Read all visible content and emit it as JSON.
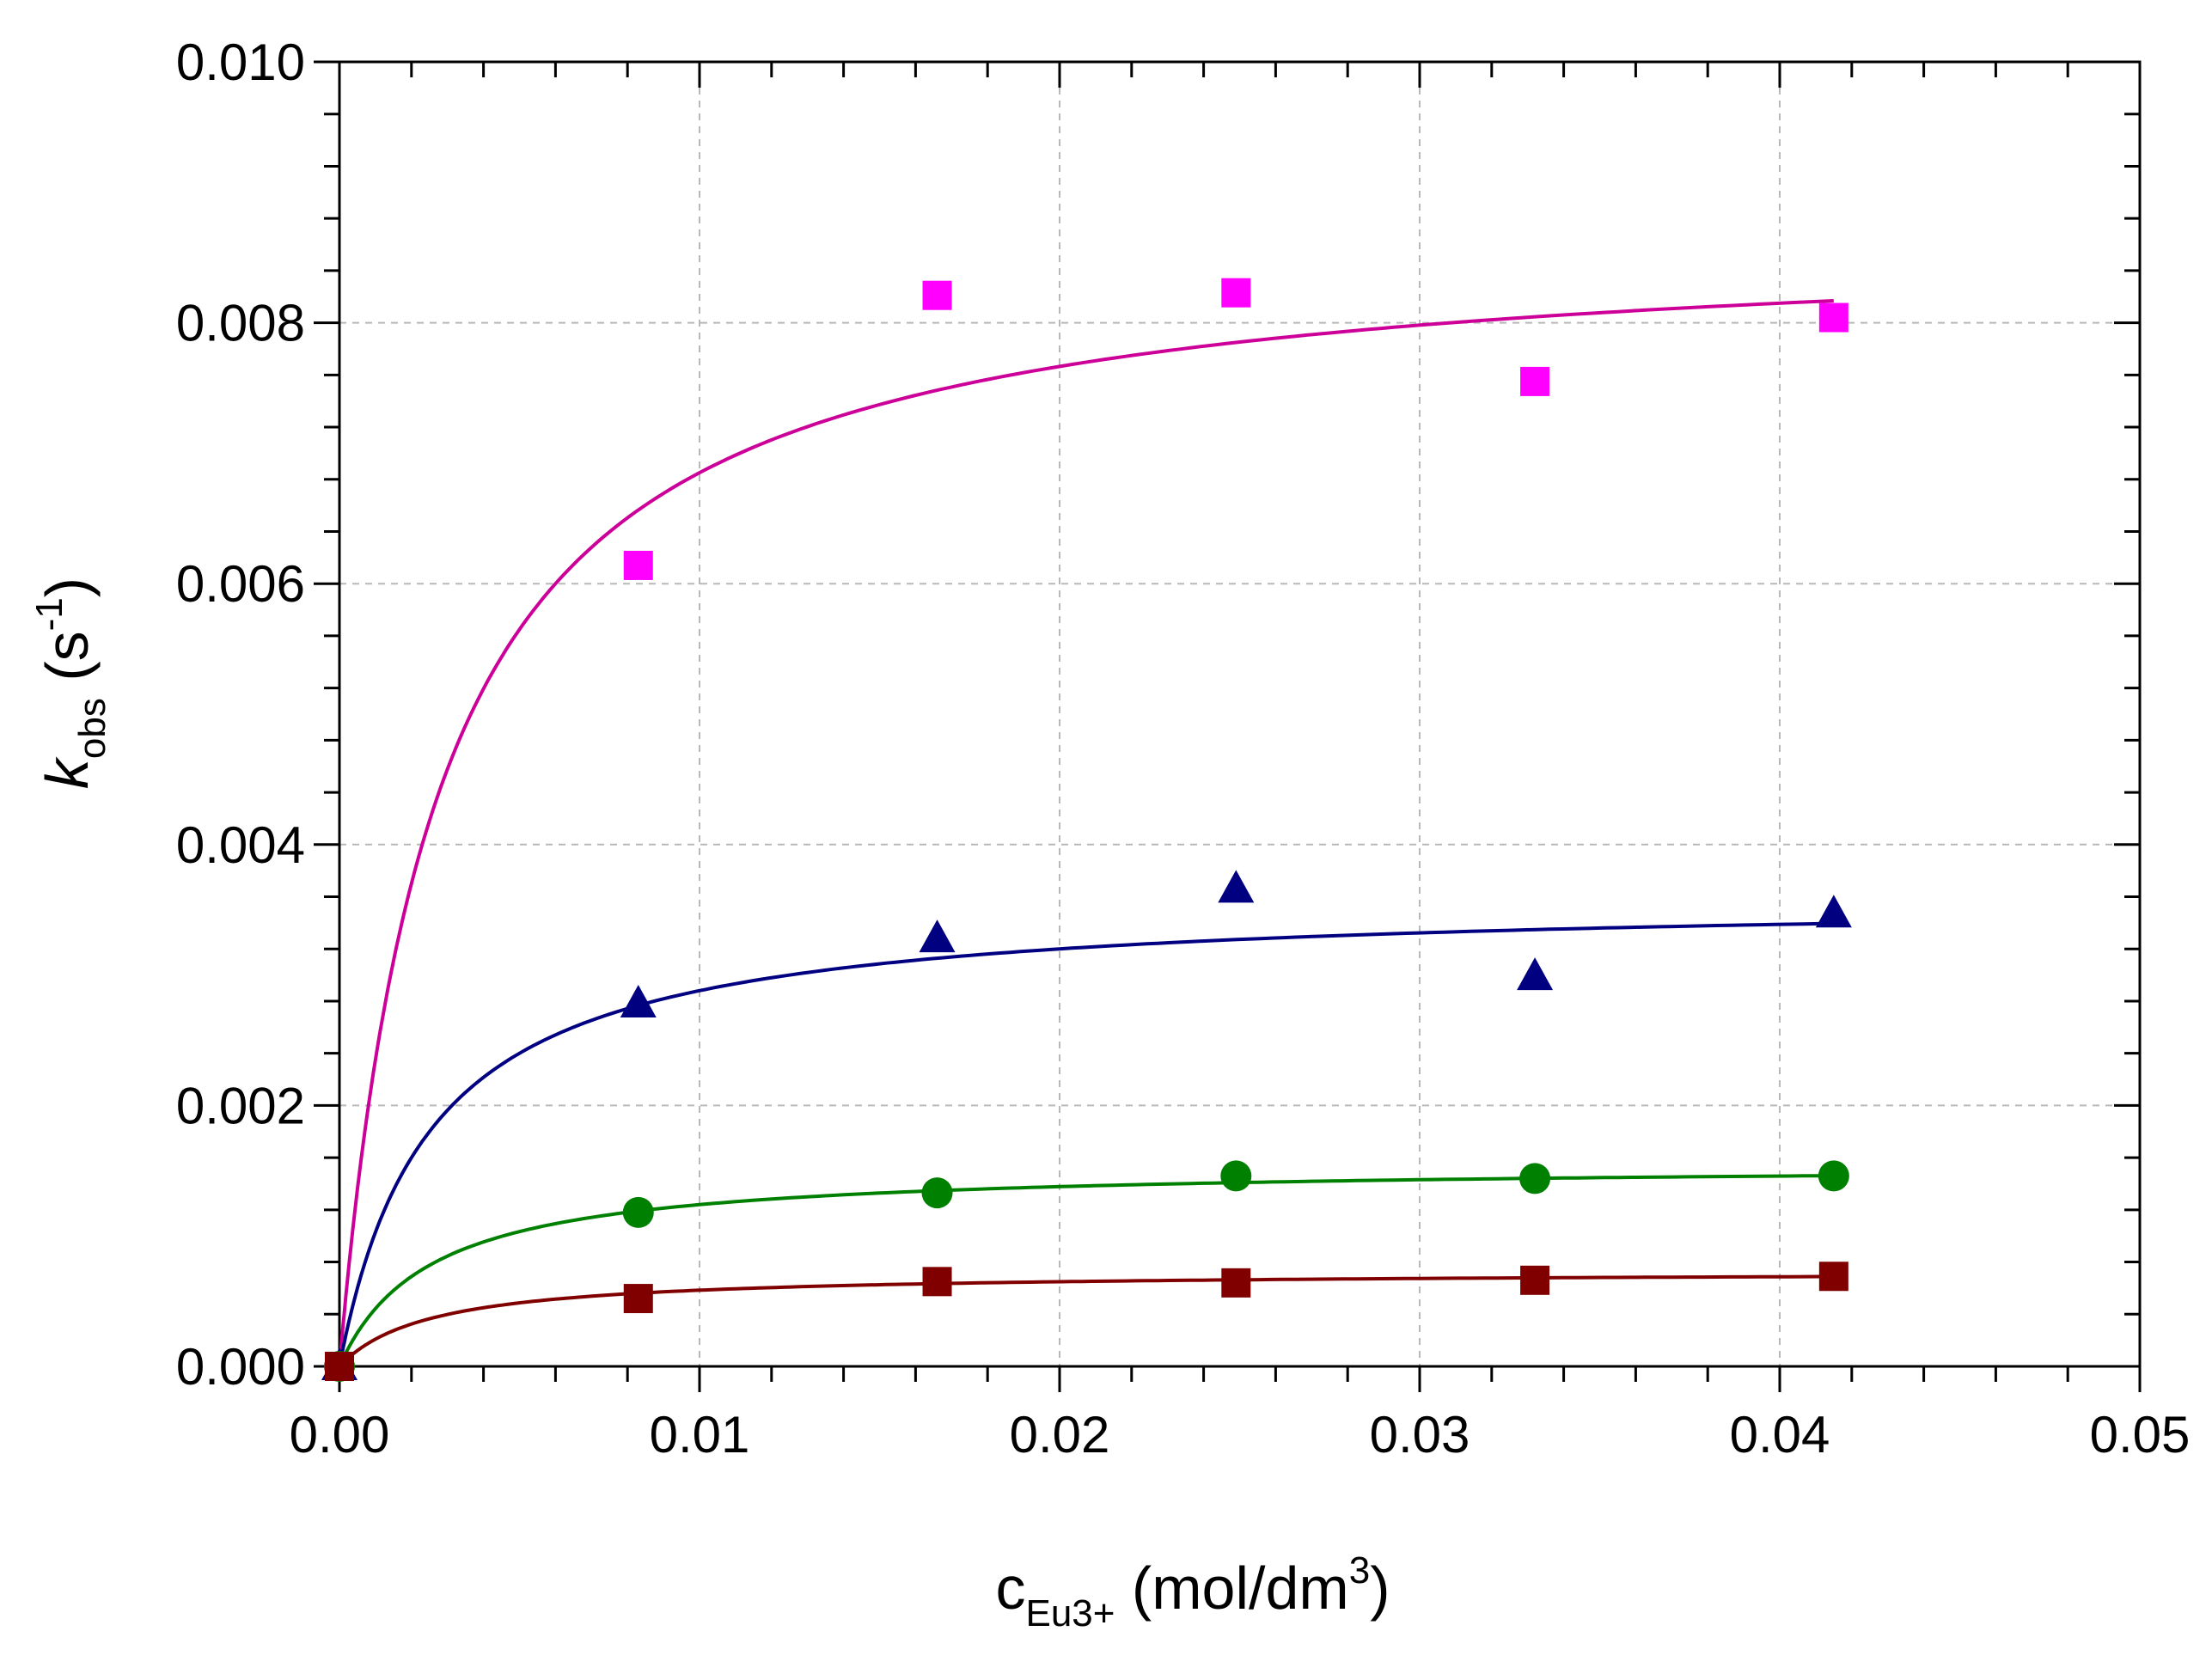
{
  "chart_data": {
    "type": "scatter",
    "title": "",
    "xlabel": {
      "main": "c",
      "sub": "Eu3+",
      "unit_pre": " (mol/dm",
      "sup": "3",
      "unit_post": ")"
    },
    "ylabel": {
      "main": "k",
      "sub": "obs",
      "unit_pre": " (s",
      "sup": "-1",
      "unit_post": ")"
    },
    "xlim": [
      0,
      0.05
    ],
    "ylim": [
      0,
      0.01
    ],
    "grid": true,
    "x_ticks": [
      {
        "value": 0.0,
        "label": "0.00"
      },
      {
        "value": 0.01,
        "label": "0.01"
      },
      {
        "value": 0.02,
        "label": "0.02"
      },
      {
        "value": 0.03,
        "label": "0.03"
      },
      {
        "value": 0.04,
        "label": "0.04"
      },
      {
        "value": 0.05,
        "label": "0.05"
      }
    ],
    "y_ticks": [
      {
        "value": 0.0,
        "label": "0.000"
      },
      {
        "value": 0.002,
        "label": "0.002"
      },
      {
        "value": 0.004,
        "label": "0.004"
      },
      {
        "value": 0.006,
        "label": "0.006"
      },
      {
        "value": 0.008,
        "label": "0.008"
      },
      {
        "value": 0.01,
        "label": "0.010"
      }
    ],
    "series": [
      {
        "name": "magenta squares",
        "marker": "square",
        "color": "#ff00ff",
        "line_color": "#cc0099",
        "x": [
          0.0,
          0.0083,
          0.0166,
          0.0249,
          0.0332,
          0.0415
        ],
        "y": [
          0.0,
          0.00614,
          0.00821,
          0.00823,
          0.00755,
          0.00804
        ],
        "fit": {
          "kmax": 0.0087,
          "K": 0.0027
        }
      },
      {
        "name": "navy triangles",
        "marker": "triangle",
        "color": "#000080",
        "line_color": "#000080",
        "x": [
          0.0,
          0.0083,
          0.0166,
          0.0249,
          0.0332,
          0.0415
        ],
        "y": [
          0.0,
          0.00278,
          0.00328,
          0.00366,
          0.00299,
          0.00347
        ],
        "fit": {
          "kmax": 0.0036,
          "K": 0.0025
        }
      },
      {
        "name": "green circles",
        "marker": "circle",
        "color": "#008000",
        "line_color": "#008000",
        "x": [
          0.0,
          0.0083,
          0.0166,
          0.0249,
          0.0332,
          0.0415
        ],
        "y": [
          0.0,
          0.00118,
          0.00133,
          0.00146,
          0.00144,
          0.00146
        ],
        "fit": {
          "kmax": 0.00155,
          "K": 0.0025
        }
      },
      {
        "name": "dark red squares",
        "marker": "square",
        "color": "#800000",
        "line_color": "#800000",
        "x": [
          0.0,
          0.0083,
          0.0166,
          0.0249,
          0.0332,
          0.0415
        ],
        "y": [
          0.0,
          0.00052,
          0.00065,
          0.00064,
          0.00066,
          0.00069
        ],
        "fit": {
          "kmax": 0.00073,
          "K": 0.0025
        }
      }
    ]
  }
}
